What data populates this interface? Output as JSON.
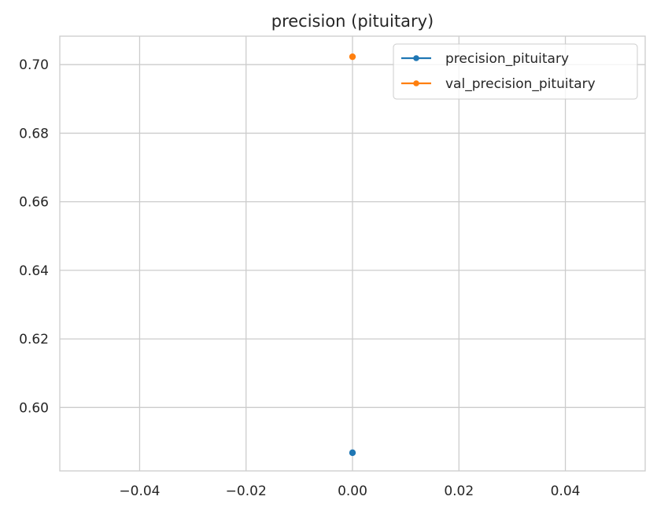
{
  "chart_data": {
    "type": "line",
    "title": "precision (pituitary)",
    "xlabel": "",
    "ylabel": "",
    "xlim": [
      -0.055,
      0.055
    ],
    "ylim": [
      0.5815,
      0.7083
    ],
    "xticks": [
      -0.04,
      -0.02,
      0.0,
      0.02,
      0.04
    ],
    "xtick_labels": [
      "−0.04",
      "−0.02",
      "0.00",
      "0.02",
      "0.04"
    ],
    "yticks": [
      0.6,
      0.62,
      0.64,
      0.66,
      0.68,
      0.7
    ],
    "ytick_labels": [
      "0.60",
      "0.62",
      "0.64",
      "0.66",
      "0.68",
      "0.70"
    ],
    "grid": true,
    "legend_position": "top-right",
    "series": [
      {
        "name": "precision_pituitary",
        "color": "#1f77b4",
        "x": [
          0
        ],
        "y": [
          0.5868
        ]
      },
      {
        "name": "val_precision_pituitary",
        "color": "#ff7f0e",
        "x": [
          0
        ],
        "y": [
          0.7023
        ]
      }
    ]
  }
}
